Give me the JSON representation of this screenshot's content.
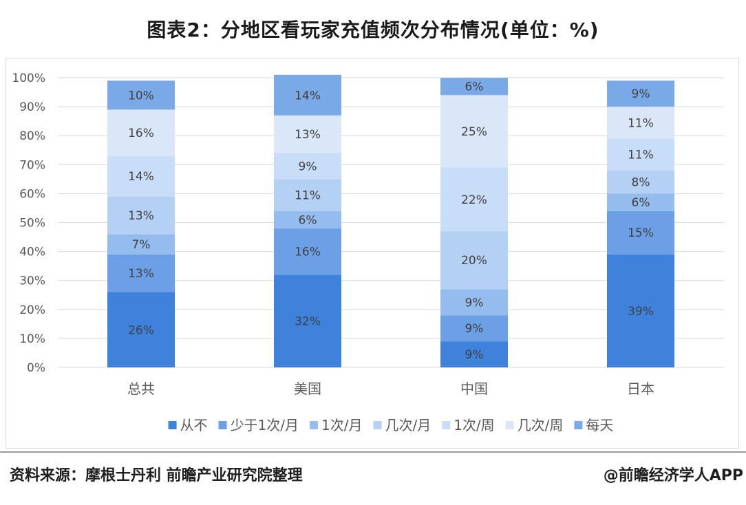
{
  "title": "图表2：分地区看玩家充值频次分布情况(单位：%)",
  "source": "资料来源：摩根士丹利 前瞻产业研究院整理",
  "credit": "@前瞻经济学人APP",
  "colors": {
    "grid": "#d9d9d9",
    "axis_text": "#595959",
    "label_text": "#404040"
  },
  "chart_data": {
    "type": "bar",
    "stacked": true,
    "orientation": "vertical",
    "categories": [
      "总共",
      "美国",
      "中国",
      "日本"
    ],
    "ylim": [
      0,
      100
    ],
    "yticks": [
      0,
      10,
      20,
      30,
      40,
      50,
      60,
      70,
      80,
      90,
      100
    ],
    "ytick_suffix": "%",
    "grid": true,
    "legend_position": "bottom",
    "series": [
      {
        "name": "从不",
        "color": "#3f82dc",
        "values": [
          26,
          32,
          9,
          39
        ]
      },
      {
        "name": "少于1次/月",
        "color": "#6ba0e6",
        "values": [
          13,
          16,
          9,
          15
        ]
      },
      {
        "name": "1次/月",
        "color": "#94bdee",
        "values": [
          7,
          6,
          9,
          6
        ]
      },
      {
        "name": "几次/月",
        "color": "#b4d0f3",
        "values": [
          13,
          11,
          20,
          8
        ]
      },
      {
        "name": "1次/周",
        "color": "#c8ddf7",
        "values": [
          14,
          9,
          22,
          11
        ]
      },
      {
        "name": "几次/周",
        "color": "#d9e7f9",
        "values": [
          16,
          13,
          25,
          11
        ]
      },
      {
        "name": "每天",
        "color": "#7aa9e8",
        "values": [
          10,
          14,
          6,
          9
        ]
      }
    ]
  }
}
